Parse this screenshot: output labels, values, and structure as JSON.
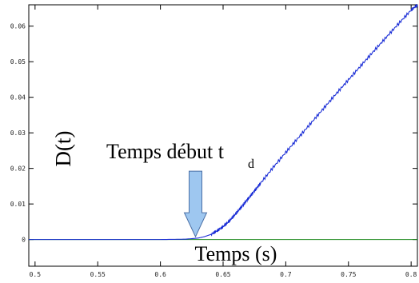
{
  "chart_data": {
    "type": "line",
    "xlabel": "Temps (s)",
    "ylabel": "D(t)",
    "xlim": [
      0.495,
      0.805
    ],
    "ylim": [
      -0.0075,
      0.066
    ],
    "x_ticks": [
      0.5,
      0.55,
      0.6,
      0.65,
      0.7,
      0.75,
      0.8
    ],
    "x_tick_labels": [
      "0.5",
      "0.55",
      "0.6",
      "0.65",
      "0.7",
      "0.75",
      "0.8"
    ],
    "y_ticks": [
      0,
      0.01,
      0.02,
      0.03,
      0.04,
      0.05,
      0.06
    ],
    "y_tick_labels": [
      "0",
      "0.01",
      "0.02",
      "0.03",
      "0.04",
      "0.05",
      "0.06"
    ],
    "grid": false,
    "series": [
      {
        "color": "#1a2dd6",
        "x": [
          0.495,
          0.6,
          0.62,
          0.63,
          0.635,
          0.64,
          0.645,
          0.65,
          0.655,
          0.66,
          0.665,
          0.67,
          0.675,
          0.68,
          0.69,
          0.7,
          0.71,
          0.72,
          0.73,
          0.74,
          0.75,
          0.76,
          0.77,
          0.78,
          0.79,
          0.8,
          0.805
        ],
        "y": [
          0,
          0,
          0.0001,
          0.0004,
          0.0008,
          0.0014,
          0.0024,
          0.0036,
          0.0052,
          0.0072,
          0.0093,
          0.0115,
          0.0137,
          0.0159,
          0.0203,
          0.0245,
          0.0286,
          0.0327,
          0.0368,
          0.0409,
          0.0449,
          0.0489,
          0.0529,
          0.0568,
          0.0607,
          0.0645,
          0.066
        ]
      },
      {
        "color": "#1f8a1f",
        "x": [
          0.495,
          0.805
        ],
        "y": [
          0,
          0
        ]
      }
    ],
    "annotations": [
      {
        "text": "Temps début t",
        "subscript": "d",
        "arrow_x": 0.628,
        "arrow_y": 0.0008,
        "arrow_color": "#9ec7f0"
      }
    ]
  }
}
